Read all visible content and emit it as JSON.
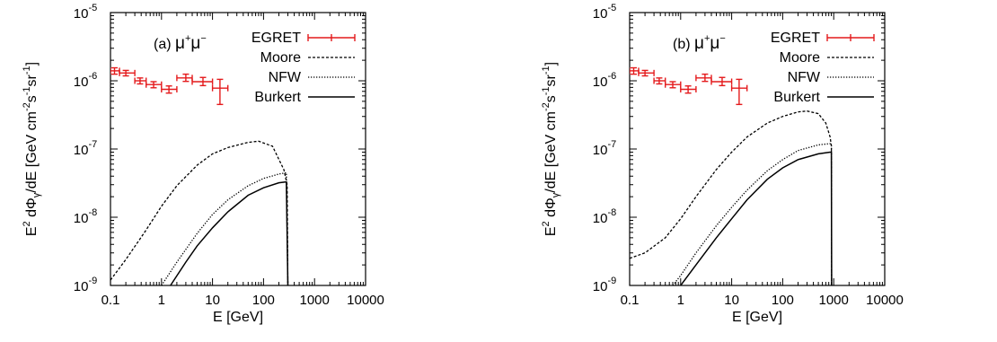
{
  "chart_data": [
    {
      "type": "line",
      "annotation": {
        "prefix": "(a) ",
        "particle": "μ",
        "sup1": "+",
        "sup2": "−"
      },
      "xlabel": "E [GeV]",
      "ylabel": {
        "prefix": "E",
        "sup": "2",
        "mid": " dΦ",
        "sub": "γ",
        "rest": "/dE [GeV cm",
        "sup_cm": "-2",
        "s": "s",
        "sup_s": "-1",
        "sr": "sr",
        "sup_sr": "-1",
        "end": "]"
      },
      "xscale": "log",
      "yscale": "log",
      "xlim": [
        0.1,
        10000
      ],
      "ylim": [
        1e-09,
        1e-05
      ],
      "xticks": [
        {
          "v": 0.1,
          "label": "0.1"
        },
        {
          "v": 1,
          "label": "1"
        },
        {
          "v": 10,
          "label": "10"
        },
        {
          "v": 100,
          "label": "100"
        },
        {
          "v": 1000,
          "label": "1000"
        },
        {
          "v": 10000,
          "label": "10000"
        }
      ],
      "yticks": [
        {
          "v": 1e-09,
          "base": "10",
          "exp": "-9"
        },
        {
          "v": 1e-08,
          "base": "10",
          "exp": "-8"
        },
        {
          "v": 1e-07,
          "base": "10",
          "exp": "-7"
        },
        {
          "v": 1e-06,
          "base": "10",
          "exp": "-6"
        },
        {
          "v": 1e-05,
          "base": "10",
          "exp": "-5"
        }
      ],
      "legend_position": "top-right",
      "series": [
        {
          "name": "EGRET",
          "kind": "errorbar",
          "style": "red",
          "points": [
            {
              "x": 0.12,
              "y": 1.4e-06,
              "xlo": 0.1,
              "xhi": 0.15,
              "ylo": 1.25e-06,
              "yhi": 1.55e-06
            },
            {
              "x": 0.2,
              "y": 1.3e-06,
              "xlo": 0.15,
              "xhi": 0.3,
              "ylo": 1.18e-06,
              "yhi": 1.42e-06
            },
            {
              "x": 0.38,
              "y": 1e-06,
              "xlo": 0.3,
              "xhi": 0.5,
              "ylo": 9e-07,
              "yhi": 1.1e-06
            },
            {
              "x": 0.7,
              "y": 8.8e-07,
              "xlo": 0.5,
              "xhi": 1.0,
              "ylo": 7.9e-07,
              "yhi": 9.7e-07
            },
            {
              "x": 1.4,
              "y": 7.5e-07,
              "xlo": 1.0,
              "xhi": 2.0,
              "ylo": 6.6e-07,
              "yhi": 8.4e-07
            },
            {
              "x": 3.0,
              "y": 1.1e-06,
              "xlo": 2.0,
              "xhi": 4.0,
              "ylo": 9.8e-07,
              "yhi": 1.25e-06
            },
            {
              "x": 6.5,
              "y": 9.7e-07,
              "xlo": 4.0,
              "xhi": 10.0,
              "ylo": 8.5e-07,
              "yhi": 1.12e-06
            },
            {
              "x": 14.0,
              "y": 7.8e-07,
              "xlo": 10.0,
              "xhi": 20.0,
              "ylo": 4.5e-07,
              "yhi": 1.05e-06
            }
          ]
        },
        {
          "name": "Moore",
          "kind": "line",
          "style": "dashed",
          "points": [
            [
              0.1,
              1.2e-09
            ],
            [
              0.2,
              2.4e-09
            ],
            [
              0.5,
              6.5e-09
            ],
            [
              1,
              1.45e-08
            ],
            [
              2,
              2.9e-08
            ],
            [
              5,
              5.8e-08
            ],
            [
              10,
              8.5e-08
            ],
            [
              20,
              1.05e-07
            ],
            [
              50,
              1.25e-07
            ],
            [
              80,
              1.3e-07
            ],
            [
              150,
              1.1e-07
            ],
            [
              250,
              5e-08
            ],
            [
              290,
              3e-08
            ],
            [
              300,
              1e-09
            ]
          ]
        },
        {
          "name": "NFW",
          "kind": "line",
          "style": "dotted",
          "points": [
            [
              1,
              1e-09
            ],
            [
              2,
              2.2e-09
            ],
            [
              5,
              5.8e-09
            ],
            [
              10,
              1.1e-08
            ],
            [
              20,
              1.8e-08
            ],
            [
              50,
              2.9e-08
            ],
            [
              100,
              3.7e-08
            ],
            [
              200,
              4.3e-08
            ],
            [
              280,
              4.5e-08
            ],
            [
              300,
              1e-09
            ]
          ]
        },
        {
          "name": "Burkert",
          "kind": "line",
          "style": "solid",
          "points": [
            [
              1.5,
              1e-09
            ],
            [
              3,
              2.2e-09
            ],
            [
              5,
              3.8e-09
            ],
            [
              10,
              7e-09
            ],
            [
              20,
              1.2e-08
            ],
            [
              50,
              2.1e-08
            ],
            [
              100,
              2.7e-08
            ],
            [
              200,
              3.2e-08
            ],
            [
              280,
              3.3e-08
            ],
            [
              300,
              1e-09
            ]
          ]
        }
      ]
    },
    {
      "type": "line",
      "annotation": {
        "prefix": "(b) ",
        "particle": "μ",
        "sup1": "+",
        "sup2": "−"
      },
      "xlabel": "E [GeV]",
      "ylabel": {
        "prefix": "E",
        "sup": "2",
        "mid": " dΦ",
        "sub": "γ",
        "rest": "/dE [GeV cm",
        "sup_cm": "-2",
        "s": "s",
        "sup_s": "-1",
        "sr": "sr",
        "sup_sr": "-1",
        "end": "]"
      },
      "xscale": "log",
      "yscale": "log",
      "xlim": [
        0.1,
        10000
      ],
      "ylim": [
        1e-09,
        1e-05
      ],
      "xticks": [
        {
          "v": 0.1,
          "label": "0.1"
        },
        {
          "v": 1,
          "label": "1"
        },
        {
          "v": 10,
          "label": "10"
        },
        {
          "v": 100,
          "label": "100"
        },
        {
          "v": 1000,
          "label": "1000"
        },
        {
          "v": 10000,
          "label": "10000"
        }
      ],
      "yticks": [
        {
          "v": 1e-09,
          "base": "10",
          "exp": "-9"
        },
        {
          "v": 1e-08,
          "base": "10",
          "exp": "-8"
        },
        {
          "v": 1e-07,
          "base": "10",
          "exp": "-7"
        },
        {
          "v": 1e-06,
          "base": "10",
          "exp": "-6"
        },
        {
          "v": 1e-05,
          "base": "10",
          "exp": "-5"
        }
      ],
      "legend_position": "top-right",
      "series": [
        {
          "name": "EGRET",
          "kind": "errorbar",
          "style": "red",
          "points": [
            {
              "x": 0.12,
              "y": 1.4e-06,
              "xlo": 0.1,
              "xhi": 0.15,
              "ylo": 1.25e-06,
              "yhi": 1.55e-06
            },
            {
              "x": 0.2,
              "y": 1.3e-06,
              "xlo": 0.15,
              "xhi": 0.3,
              "ylo": 1.18e-06,
              "yhi": 1.42e-06
            },
            {
              "x": 0.38,
              "y": 1e-06,
              "xlo": 0.3,
              "xhi": 0.5,
              "ylo": 9e-07,
              "yhi": 1.1e-06
            },
            {
              "x": 0.7,
              "y": 8.8e-07,
              "xlo": 0.5,
              "xhi": 1.0,
              "ylo": 7.9e-07,
              "yhi": 9.7e-07
            },
            {
              "x": 1.4,
              "y": 7.5e-07,
              "xlo": 1.0,
              "xhi": 2.0,
              "ylo": 6.6e-07,
              "yhi": 8.4e-07
            },
            {
              "x": 3.0,
              "y": 1.1e-06,
              "xlo": 2.0,
              "xhi": 4.0,
              "ylo": 9.8e-07,
              "yhi": 1.25e-06
            },
            {
              "x": 6.5,
              "y": 9.7e-07,
              "xlo": 4.0,
              "xhi": 10.0,
              "ylo": 8.5e-07,
              "yhi": 1.12e-06
            },
            {
              "x": 14.0,
              "y": 7.8e-07,
              "xlo": 10.0,
              "xhi": 20.0,
              "ylo": 4.5e-07,
              "yhi": 1.05e-06
            }
          ]
        },
        {
          "name": "Moore",
          "kind": "line",
          "style": "dashed",
          "points": [
            [
              0.1,
              2.5e-09
            ],
            [
              0.2,
              3e-09
            ],
            [
              0.5,
              5e-09
            ],
            [
              1,
              9.5e-09
            ],
            [
              2,
              2e-08
            ],
            [
              5,
              5e-08
            ],
            [
              10,
              9e-08
            ],
            [
              20,
              1.5e-07
            ],
            [
              50,
              2.4e-07
            ],
            [
              100,
              3e-07
            ],
            [
              200,
              3.5e-07
            ],
            [
              300,
              3.6e-07
            ],
            [
              500,
              3.3e-07
            ],
            [
              700,
              2.4e-07
            ],
            [
              850,
              1.5e-07
            ],
            [
              900,
              1.1e-07
            ],
            [
              910,
              1e-09
            ]
          ]
        },
        {
          "name": "NFW",
          "kind": "line",
          "style": "dotted",
          "points": [
            [
              0.7,
              1e-09
            ],
            [
              1,
              1.4e-09
            ],
            [
              2,
              3e-09
            ],
            [
              5,
              7.5e-09
            ],
            [
              10,
              1.4e-08
            ],
            [
              20,
              2.5e-08
            ],
            [
              50,
              4.8e-08
            ],
            [
              100,
              7e-08
            ],
            [
              200,
              9.5e-08
            ],
            [
              500,
              1.15e-07
            ],
            [
              850,
              1.2e-07
            ],
            [
              900,
              1.15e-07
            ],
            [
              910,
              1e-09
            ]
          ]
        },
        {
          "name": "Burkert",
          "kind": "line",
          "style": "solid",
          "points": [
            [
              1,
              1e-09
            ],
            [
              2,
              2e-09
            ],
            [
              5,
              5e-09
            ],
            [
              10,
              9.5e-09
            ],
            [
              20,
              1.8e-08
            ],
            [
              50,
              3.6e-08
            ],
            [
              100,
              5.3e-08
            ],
            [
              200,
              7e-08
            ],
            [
              500,
              8.5e-08
            ],
            [
              850,
              9e-08
            ],
            [
              900,
              9e-08
            ],
            [
              910,
              1e-09
            ]
          ]
        }
      ]
    }
  ]
}
